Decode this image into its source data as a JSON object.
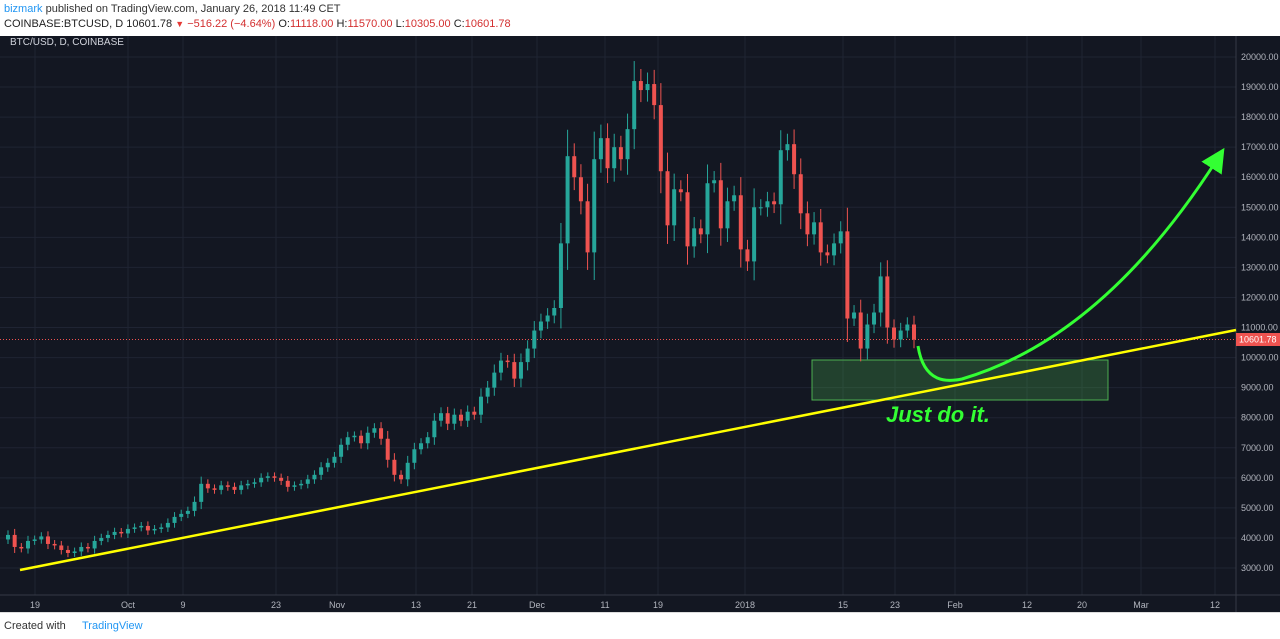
{
  "header": {
    "author": "bizmark",
    "published_text": "published on TradingView.com, January 26, 2018 11:49 CET",
    "symbol": "COINBASE:BTCUSD, D",
    "last": "10601.78",
    "change": "−516.22 (−4.64%)",
    "o_label": "O:",
    "o_value": "11118.00",
    "h_label": "H:",
    "h_value": "11570.00",
    "l_label": "L:",
    "l_value": "10305.00",
    "c_label": "C:",
    "c_value": "10601.78"
  },
  "chart_title": "BTC/USD, D, COINBASE",
  "annotation_text": "Just do it.",
  "price_tag": "10601.78",
  "footer": {
    "created_with": "Created with",
    "brand": "TradingView"
  },
  "colors": {
    "background": "#131722",
    "up": "#26a69a",
    "down": "#ef5350",
    "trendline": "#ffff00",
    "annotation": "#33ff33"
  },
  "chart_data": {
    "type": "candlestick",
    "title": "BTC/USD, D, COINBASE",
    "x_axis_labels": [
      "19",
      "Oct",
      "9",
      "23",
      "Nov",
      "13",
      "21",
      "Dec",
      "11",
      "19",
      "2018",
      "15",
      "23",
      "Feb",
      "12",
      "20",
      "Mar",
      "12"
    ],
    "y_ticks": [
      3000,
      4000,
      5000,
      6000,
      7000,
      8000,
      9000,
      10000,
      11000,
      12000,
      13000,
      14000,
      15000,
      16000,
      17000,
      18000,
      19000,
      20000
    ],
    "y_tick_labels": [
      "3000.00",
      "4000.00",
      "5000.00",
      "6000.00",
      "7000.00",
      "8000.00",
      "9000.00",
      "10000.00",
      "11000.00",
      "12000.00",
      "13000.00",
      "14000.00",
      "15000.00",
      "16000.00",
      "17000.00",
      "18000.00",
      "19000.00",
      "20000.00"
    ],
    "ylim": [
      2200,
      20300
    ],
    "last_price": 10601.78,
    "closes": [
      4100,
      3700,
      3650,
      3900,
      3950,
      4050,
      3800,
      3750,
      3600,
      3500,
      3550,
      3700,
      3650,
      3900,
      4000,
      4100,
      4200,
      4150,
      4300,
      4350,
      4400,
      4250,
      4300,
      4350,
      4500,
      4700,
      4800,
      4900,
      5200,
      5800,
      5650,
      5600,
      5750,
      5700,
      5600,
      5750,
      5800,
      5850,
      6000,
      6050,
      6000,
      5900,
      5700,
      5750,
      5800,
      5950,
      6100,
      6350,
      6500,
      6700,
      7100,
      7350,
      7400,
      7150,
      7500,
      7650,
      7300,
      6600,
      6100,
      5950,
      6500,
      6950,
      7150,
      7350,
      7900,
      8150,
      7800,
      8100,
      7900,
      8200,
      8100,
      8700,
      9000,
      9500,
      9900,
      9850,
      9300,
      9850,
      10300,
      10900,
      11200,
      11400,
      11650,
      13800,
      16700,
      16000,
      15200,
      13500,
      16600,
      17300,
      16300,
      17000,
      16600,
      17600,
      19200,
      18900,
      19100,
      18400,
      16200,
      14400,
      15600,
      15500,
      13700,
      14300,
      14100,
      15800,
      15900,
      14300,
      15200,
      15400,
      13600,
      13200,
      15000,
      15000,
      15200,
      15100,
      16900,
      17100,
      16100,
      14800,
      14100,
      14500,
      13500,
      13400,
      13800,
      14200,
      11300,
      11500,
      10300,
      11100,
      11500,
      12700,
      11000,
      10600,
      10900,
      11100,
      10600
    ]
  }
}
